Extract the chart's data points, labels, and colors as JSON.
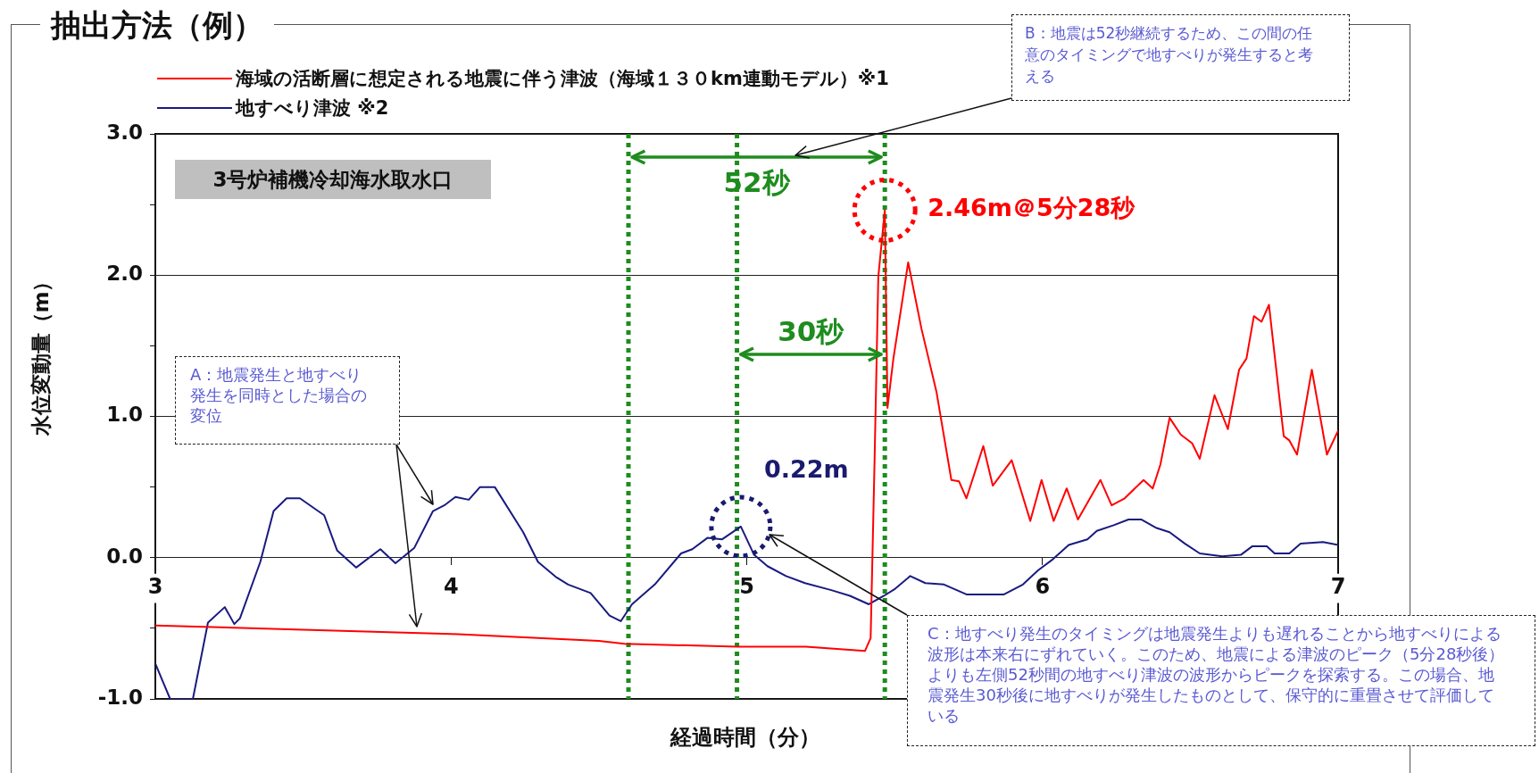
{
  "chart_data": {
    "type": "line",
    "title": "抽出方法（例）",
    "xlabel": "経過時間（分）",
    "ylabel": "水位変動量（m）",
    "xlim": [
      3,
      7
    ],
    "xticks": [
      3,
      4,
      5,
      6,
      7
    ],
    "ylim": [
      -1,
      3
    ],
    "yticks": [
      {
        "value": -1,
        "label": "-1.0"
      },
      {
        "value": -0.5,
        "label": null
      },
      {
        "value": 0,
        "label": "0.0"
      },
      {
        "value": 0.5,
        "label": null
      },
      {
        "value": 1,
        "label": "1.0"
      },
      {
        "value": 1.5,
        "label": null
      },
      {
        "value": 2,
        "label": "2.0"
      },
      {
        "value": 2.5,
        "label": null
      },
      {
        "value": 3,
        "label": "3.0"
      }
    ],
    "grid": "y",
    "legend": "top left",
    "marker": "none",
    "line_style": "solid",
    "series": [
      {
        "name": "海域の活断層に想定される地震に伴う津波（海域１３０km連動モデル）※1",
        "color": "#ff0000",
        "x": [
          3.0,
          3.5,
          4.0,
          4.5,
          4.587,
          4.968,
          5.2,
          5.4,
          5.419,
          5.432,
          5.445,
          5.467,
          5.476,
          5.496,
          5.546,
          5.591,
          5.642,
          5.692,
          5.718,
          5.743,
          5.8,
          5.832,
          5.896,
          5.959,
          5.997,
          6.038,
          6.082,
          6.12,
          6.196,
          6.234,
          6.278,
          6.342,
          6.373,
          6.399,
          6.43,
          6.468,
          6.506,
          6.532,
          6.582,
          6.627,
          6.665,
          6.69,
          6.715,
          6.741,
          6.766,
          6.816,
          6.835,
          6.861,
          6.911,
          6.962,
          7.0
        ],
        "values": [
          -0.48,
          -0.51,
          -0.54,
          -0.59,
          -0.61,
          -0.63,
          -0.63,
          -0.66,
          -0.57,
          0.66,
          1.99,
          2.46,
          1.06,
          1.41,
          2.09,
          1.62,
          1.17,
          0.55,
          0.54,
          0.42,
          0.79,
          0.51,
          0.69,
          0.26,
          0.55,
          0.26,
          0.49,
          0.27,
          0.55,
          0.37,
          0.42,
          0.55,
          0.49,
          0.66,
          0.99,
          0.87,
          0.81,
          0.7,
          1.15,
          0.91,
          1.33,
          1.41,
          1.71,
          1.67,
          1.79,
          0.86,
          0.83,
          0.73,
          1.33,
          0.73,
          0.9
        ]
      },
      {
        "name": "地すべり津波 ※2",
        "color": "#1a1a80",
        "x": [
          3.0,
          3.05,
          3.127,
          3.178,
          3.235,
          3.267,
          3.286,
          3.355,
          3.4,
          3.444,
          3.489,
          3.571,
          3.615,
          3.679,
          3.761,
          3.812,
          3.876,
          3.939,
          3.977,
          4.015,
          4.06,
          4.098,
          4.148,
          4.244,
          4.294,
          4.357,
          4.396,
          4.472,
          4.536,
          4.574,
          4.612,
          4.689,
          4.778,
          4.816,
          4.867,
          4.917,
          4.98,
          5.025,
          5.07,
          5.133,
          5.197,
          5.286,
          5.349,
          5.413,
          5.464,
          5.502,
          5.553,
          5.604,
          5.667,
          5.743,
          5.87,
          5.934,
          5.985,
          6.036,
          6.089,
          6.152,
          6.184,
          6.241,
          6.291,
          6.335,
          6.386,
          6.43,
          6.481,
          6.532,
          6.608,
          6.671,
          6.709,
          6.759,
          6.785,
          6.835,
          6.873,
          6.949,
          7.0
        ],
        "values": [
          -0.75,
          -1.0,
          -1.0,
          -0.46,
          -0.35,
          -0.47,
          -0.43,
          -0.03,
          0.33,
          0.42,
          0.42,
          0.3,
          0.05,
          -0.07,
          0.06,
          -0.04,
          0.07,
          0.33,
          0.37,
          0.43,
          0.41,
          0.5,
          0.5,
          0.18,
          -0.03,
          -0.14,
          -0.19,
          -0.25,
          -0.41,
          -0.45,
          -0.33,
          -0.19,
          0.03,
          0.06,
          0.14,
          0.13,
          0.22,
          0.02,
          -0.06,
          -0.13,
          -0.18,
          -0.23,
          -0.27,
          -0.33,
          -0.27,
          -0.22,
          -0.13,
          -0.18,
          -0.19,
          -0.26,
          -0.26,
          -0.19,
          -0.09,
          -0.01,
          0.09,
          0.13,
          0.19,
          0.23,
          0.27,
          0.27,
          0.21,
          0.18,
          0.1,
          0.03,
          0.01,
          0.02,
          0.08,
          0.08,
          0.03,
          0.03,
          0.1,
          0.11,
          0.09
        ]
      }
    ],
    "ref_lines": [
      {
        "axis": "x",
        "value": 4.6,
        "color": "#1e8c1e",
        "line_style": "dotted"
      },
      {
        "axis": "x",
        "value": 5.467,
        "color": "#1e8c1e",
        "line_style": "dotted"
      },
      {
        "axis": "x",
        "value": 4.967,
        "color": "#1e8c1e",
        "line_style": "dotted"
      }
    ],
    "annotations": [
      "3号炉補機冷却海水取水口",
      "52秒",
      "30秒",
      {
        "text": "2.46m＠5分28秒",
        "x": 5.467,
        "y": 2.46
      },
      {
        "text": "0.22m",
        "x": 4.98,
        "y": 0.22
      },
      "A：地震発生と地すべり発生を同時とした場合の変位",
      "B：地震は52秒継続するため、この間の任意のタイミングで地すべりが発生すると考える",
      "C：地すべり発生のタイミングは地震発生よりも遅れることから地すべりによる波形は本来右にずれていく。このため、地震による津波のピーク（5分28秒後）よりも左側52秒間の地すべり津波の波形からピークを探索する。この場合、地震発生30秒後に地すべりが発生したものとして、保守的に重畳させて評価している"
    ]
  }
}
